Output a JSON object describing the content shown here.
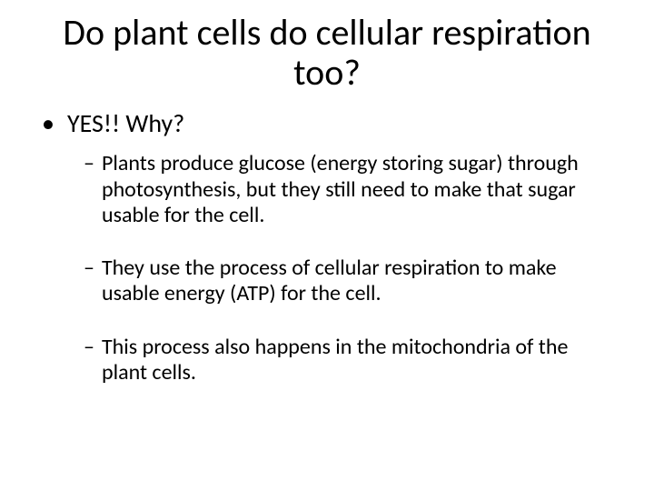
{
  "slide": {
    "title": "Do plant cells do cellular respiration too?",
    "title_fontsize": 40,
    "title_color": "#000000",
    "bullet_l1": {
      "marker": "•",
      "text": "YES!! Why?",
      "fontsize": 28,
      "color": "#000000"
    },
    "bullets_l2": [
      {
        "marker": "–",
        "text": "Plants produce glucose (energy storing sugar) through photosynthesis, but they still need to make that sugar usable for the cell."
      },
      {
        "marker": "–",
        "text": "They use the process of cellular respiration to make usable energy (ATP) for the cell."
      },
      {
        "marker": "–",
        "text": "This process also happens in the mitochondria of the plant cells."
      }
    ],
    "bullet_l2_fontsize": 24,
    "bullet_l2_color": "#000000",
    "background_color": "#ffffff"
  }
}
